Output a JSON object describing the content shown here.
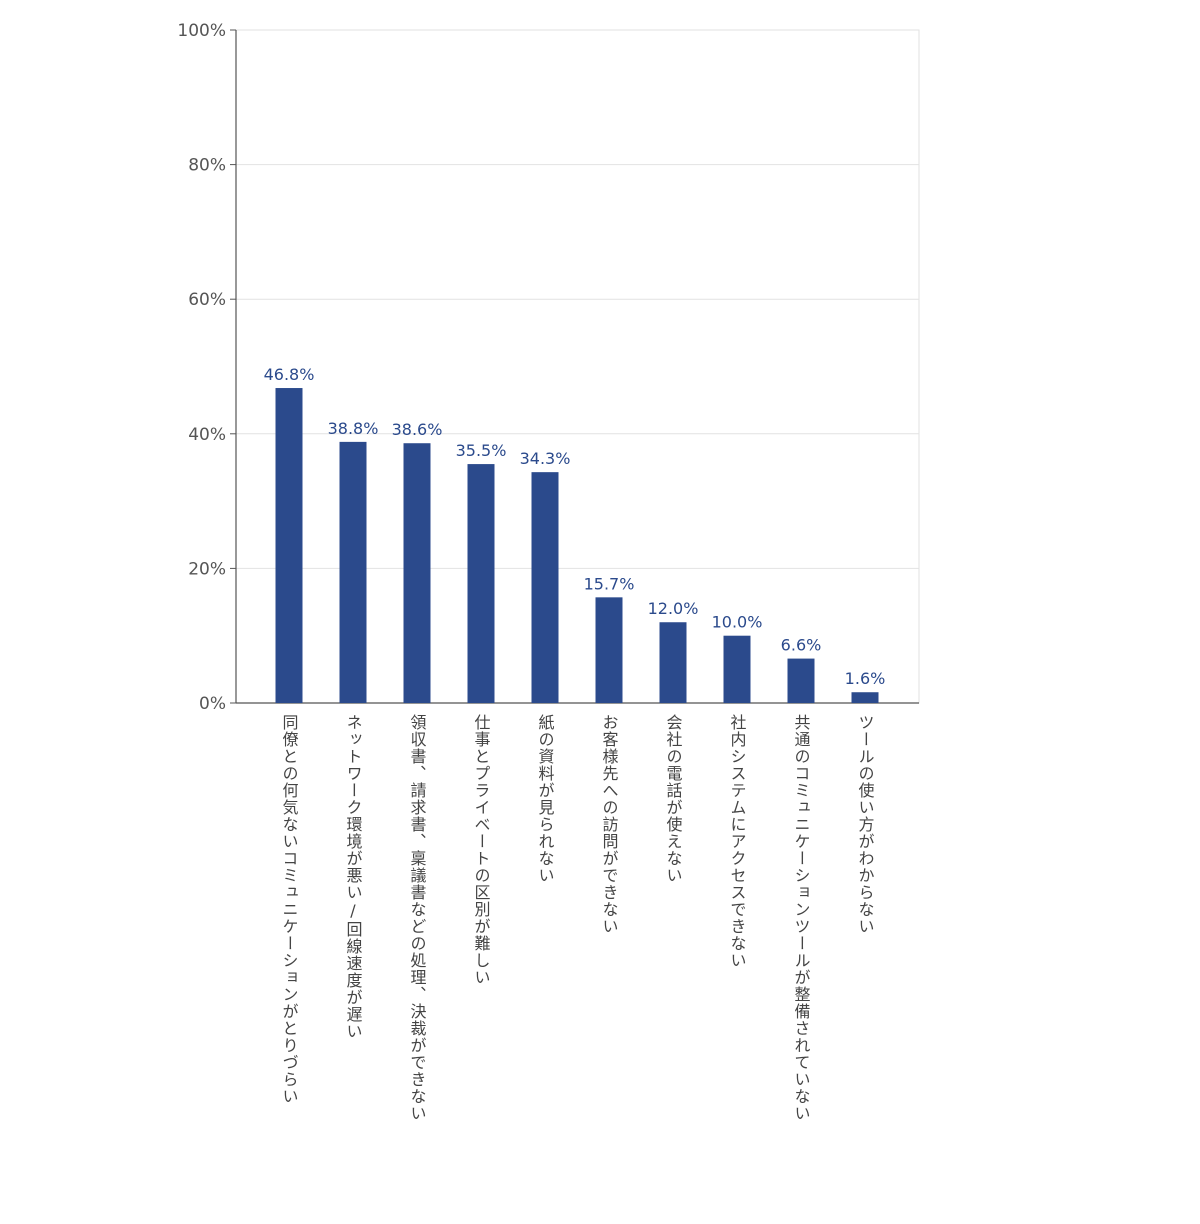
{
  "chart_data": {
    "type": "bar",
    "title": "",
    "xlabel": "",
    "ylabel": "",
    "ylim": [
      0,
      100
    ],
    "ytick_values": [
      0,
      20,
      40,
      60,
      80,
      100
    ],
    "yticks": [
      "0%",
      "20%",
      "40%",
      "60%",
      "80%",
      "100%"
    ],
    "grid": true,
    "legend": "none",
    "categories": [
      "同僚との何気ないコミュニケーションがとりづらい",
      "ネットワーク環境が悪い/回線速度が遅い",
      "領収書、請求書、稟議書などの処理、決裁ができない",
      "仕事とプライベートの区別が難しい",
      "紙の資料が見られない",
      "お客様先への訪問ができない",
      "会社の電話が使えない",
      "社内システムにアクセスできない",
      "共通のコミュニケーションツールが整備されていない",
      "ツールの使い方がわからない"
    ],
    "values": [
      46.8,
      38.8,
      38.6,
      35.5,
      34.3,
      15.7,
      12.0,
      10.0,
      6.6,
      1.6
    ],
    "value_labels": [
      "46.8%",
      "38.8%",
      "38.6%",
      "35.5%",
      "34.3%",
      "15.7%",
      "12.0%",
      "10.0%",
      "6.6%",
      "1.6%"
    ],
    "colors": {
      "bar": "#2b4a8c",
      "label": "#2b4a8c",
      "grid": "#e2e2e2",
      "axis": "#555555"
    }
  }
}
